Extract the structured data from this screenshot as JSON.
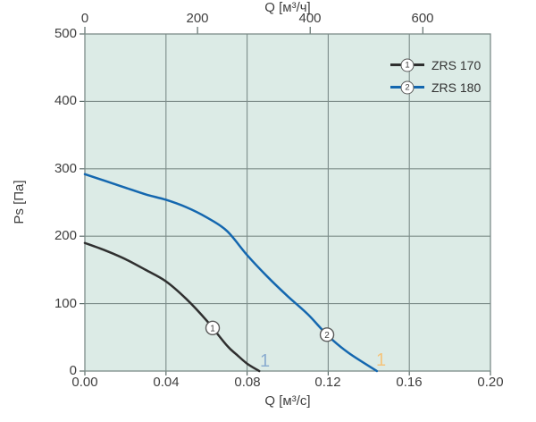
{
  "chart_data": {
    "type": "line",
    "description": "Fan performance curves: static pressure vs airflow",
    "x_axis_bottom": {
      "label": "Q [м³/с]",
      "tick_labels": [
        "0.00",
        "0.04",
        "0.08",
        "0.12",
        "0.16",
        "0.20"
      ],
      "tick_values": [
        0,
        0.04,
        0.08,
        0.12,
        0.16,
        0.2
      ],
      "range": [
        0,
        0.2
      ]
    },
    "x_axis_top": {
      "label": "Q [м³/ч]",
      "tick_labels": [
        "0",
        "200",
        "400",
        "600"
      ],
      "tick_values": [
        0,
        200,
        400,
        600
      ],
      "unit_factor_vs_bottom": 3600
    },
    "y_axis": {
      "label": "Ps [Па]",
      "tick_labels": [
        "500",
        "400",
        "300",
        "200",
        "100",
        "0"
      ],
      "tick_values": [
        500,
        400,
        300,
        200,
        100,
        0
      ],
      "range": [
        0,
        500
      ]
    },
    "grid": true,
    "legend_position": "top-right",
    "series": [
      {
        "name": "ZRS 170",
        "marker_label": "1",
        "color": "#2f2f2f",
        "marker_q": 0.063,
        "points_q_pa": [
          [
            0,
            190
          ],
          [
            0.01,
            179
          ],
          [
            0.02,
            166
          ],
          [
            0.03,
            150
          ],
          [
            0.04,
            133
          ],
          [
            0.05,
            107
          ],
          [
            0.06,
            75
          ],
          [
            0.07,
            38
          ],
          [
            0.075,
            24
          ],
          [
            0.08,
            11
          ],
          [
            0.086,
            0
          ]
        ]
      },
      {
        "name": "ZRS 180",
        "marker_label": "2",
        "color": "#1467af",
        "marker_q": 0.1194,
        "points_q_pa": [
          [
            0,
            292
          ],
          [
            0.01,
            282
          ],
          [
            0.02,
            272
          ],
          [
            0.03,
            262
          ],
          [
            0.04,
            254
          ],
          [
            0.05,
            243
          ],
          [
            0.06,
            228
          ],
          [
            0.07,
            208
          ],
          [
            0.08,
            172
          ],
          [
            0.09,
            140
          ],
          [
            0.1,
            111
          ],
          [
            0.11,
            84
          ],
          [
            0.12,
            52
          ],
          [
            0.13,
            27
          ],
          [
            0.144,
            0
          ]
        ]
      }
    ],
    "watermarks": [
      {
        "text": "1",
        "color": "#8badd0"
      },
      {
        "text": "1",
        "color": "#f4c47d"
      }
    ],
    "colors": {
      "plot_bg": "#dcebe6",
      "grid": "#7c8c89",
      "tick": "#5d6d6a",
      "text": "#3f3f3f"
    }
  }
}
